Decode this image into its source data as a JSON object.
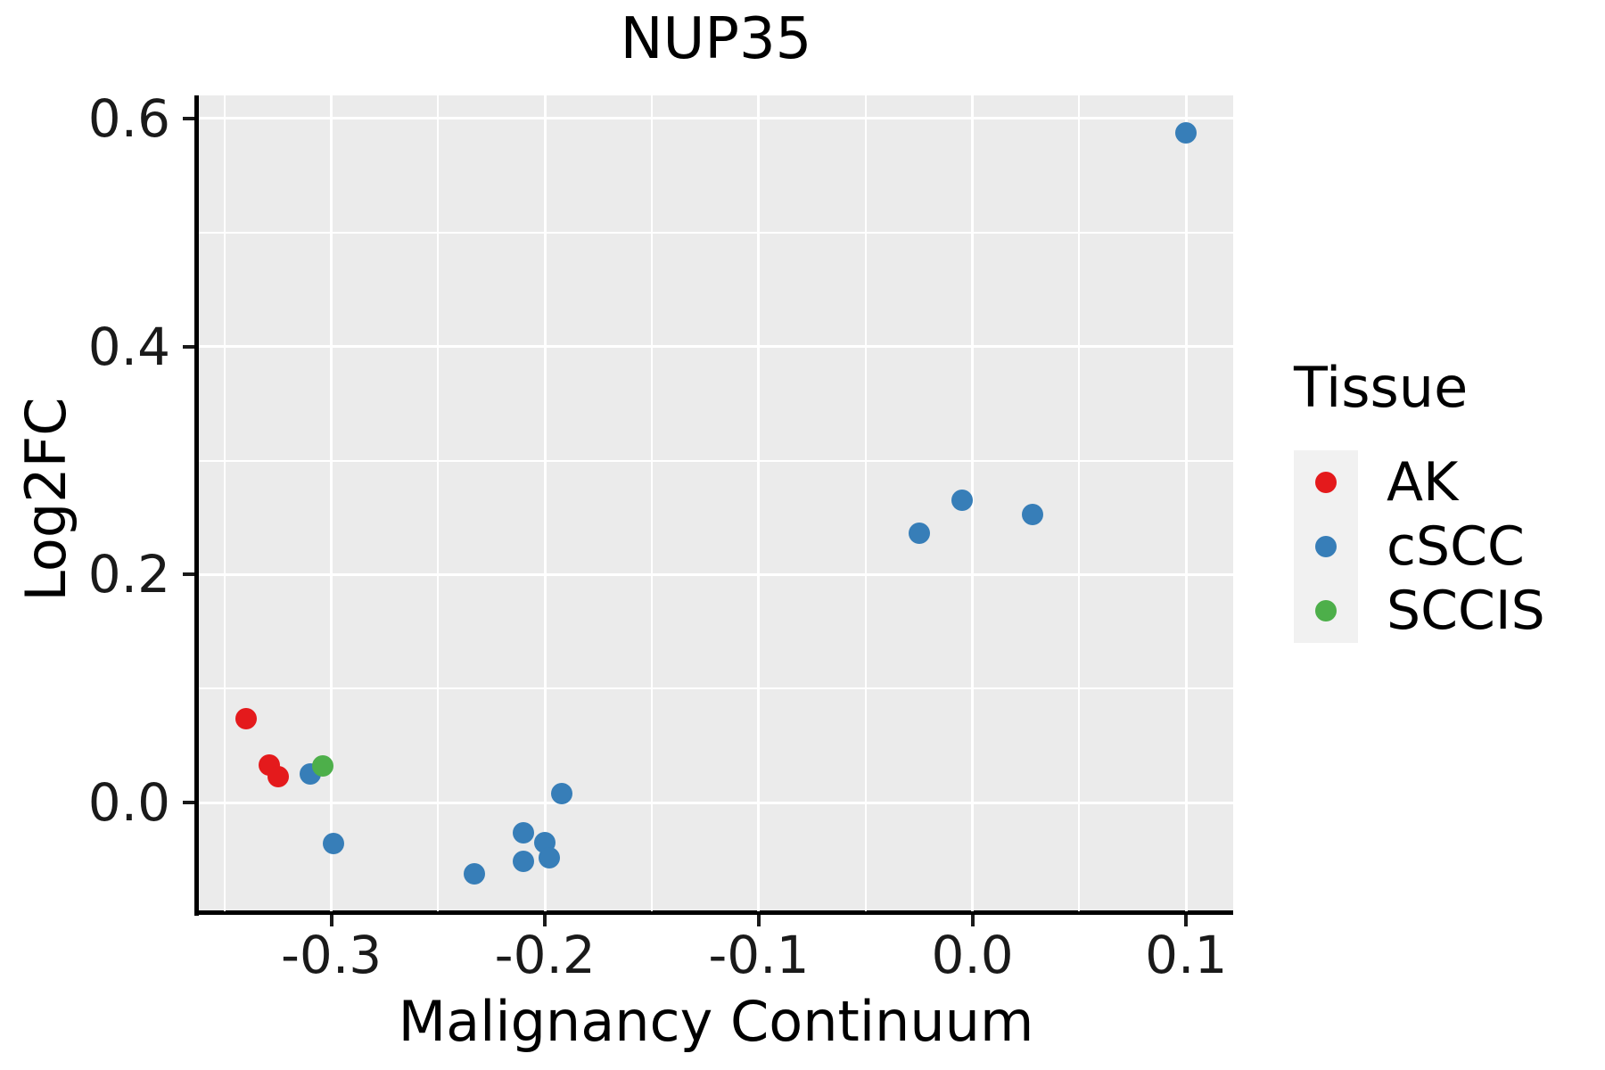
{
  "chart_data": {
    "type": "scatter",
    "title": "NUP35",
    "xlabel": "Malignancy Continuum",
    "ylabel": "Log2FC",
    "xlim": [
      -0.362,
      0.122
    ],
    "ylim": [
      -0.095,
      0.62
    ],
    "grid": "major-and-minor",
    "background": "#EBEBEB",
    "x_ticks": {
      "values": [
        -0.3,
        -0.2,
        -0.1,
        0.0,
        0.1
      ],
      "labels": [
        "-0.3",
        "-0.2",
        "-0.1",
        "0.0",
        "0.1"
      ]
    },
    "x_minor_ticks": [
      -0.35,
      -0.25,
      -0.15,
      -0.05,
      0.05
    ],
    "y_ticks": {
      "values": [
        0.0,
        0.2,
        0.4,
        0.6
      ],
      "labels": [
        "0.0",
        "0.2",
        "0.4",
        "0.6"
      ]
    },
    "y_minor_ticks": [
      0.1,
      0.3,
      0.5
    ],
    "legend": {
      "title": "Tissue",
      "position": "right",
      "entries": [
        {
          "label": "AK",
          "color": "#E41A1C"
        },
        {
          "label": "cSCC",
          "color": "#377EB8"
        },
        {
          "label": "SCCIS",
          "color": "#4DAF4A"
        }
      ]
    },
    "series": [
      {
        "name": "AK",
        "color": "#E41A1C",
        "points": [
          [
            -0.34,
            0.074
          ],
          [
            -0.329,
            0.033
          ],
          [
            -0.325,
            0.023
          ]
        ]
      },
      {
        "name": "cSCC",
        "color": "#377EB8",
        "points": [
          [
            -0.31,
            0.025
          ],
          [
            -0.299,
            -0.036
          ],
          [
            -0.233,
            -0.062
          ],
          [
            -0.21,
            -0.026
          ],
          [
            -0.21,
            -0.051
          ],
          [
            -0.2,
            -0.035
          ],
          [
            -0.198,
            -0.048
          ],
          [
            -0.192,
            0.008
          ],
          [
            -0.025,
            0.236
          ],
          [
            -0.005,
            0.265
          ],
          [
            0.028,
            0.253
          ],
          [
            0.1,
            0.587
          ]
        ]
      },
      {
        "name": "SCCIS",
        "color": "#4DAF4A",
        "points": [
          [
            -0.304,
            0.032
          ]
        ]
      }
    ]
  }
}
